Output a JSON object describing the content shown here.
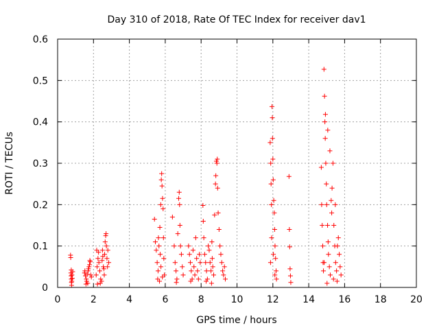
{
  "chart_data": {
    "type": "scatter",
    "title": "Day 310 of 2018, Rate Of TEC Index for receiver dav1",
    "xlabel": "GPS time / hours",
    "ylabel": "ROTI / TECUs",
    "xlim": [
      0,
      20
    ],
    "ylim": [
      0,
      0.6
    ],
    "x_ticks": [
      0,
      2,
      4,
      6,
      8,
      10,
      12,
      14,
      16,
      18,
      20
    ],
    "x_tick_labels": [
      "0",
      "2",
      "4",
      "6",
      "8",
      "10",
      "12",
      "14",
      "16",
      "18",
      "20"
    ],
    "y_ticks": [
      0,
      0.1,
      0.2,
      0.3,
      0.4,
      0.5,
      0.6
    ],
    "y_tick_labels": [
      "0",
      "0.1",
      "0.2",
      "0.3",
      "0.4",
      "0.5",
      "0.6"
    ],
    "grid": true,
    "marker": "+",
    "series": [
      {
        "name": "ROTI",
        "color": "#ff0000",
        "points": [
          [
            0.72,
            0.078
          ],
          [
            0.73,
            0.072
          ],
          [
            0.74,
            0.035
          ],
          [
            0.75,
            0.028
          ],
          [
            0.76,
            0.02
          ],
          [
            0.77,
            0.012
          ],
          [
            0.78,
            0.005
          ],
          [
            0.8,
            0.03
          ],
          [
            0.82,
            0.022
          ],
          [
            0.84,
            0.038
          ],
          [
            0.76,
            0.042
          ],
          [
            0.79,
            0.015
          ],
          [
            1.5,
            0.035
          ],
          [
            1.55,
            0.028
          ],
          [
            1.6,
            0.02
          ],
          [
            1.62,
            0.015
          ],
          [
            1.65,
            0.032
          ],
          [
            1.7,
            0.04
          ],
          [
            1.72,
            0.045
          ],
          [
            1.75,
            0.05
          ],
          [
            1.78,
            0.055
          ],
          [
            1.8,
            0.065
          ],
          [
            1.82,
            0.062
          ],
          [
            1.68,
            0.01
          ],
          [
            1.58,
            0.008
          ],
          [
            1.85,
            0.03
          ],
          [
            1.88,
            0.025
          ],
          [
            1.52,
            0.04
          ],
          [
            2.15,
            0.03
          ],
          [
            2.2,
            0.05
          ],
          [
            2.25,
            0.07
          ],
          [
            2.28,
            0.085
          ],
          [
            2.3,
            0.06
          ],
          [
            2.35,
            0.04
          ],
          [
            2.4,
            0.02
          ],
          [
            2.45,
            0.015
          ],
          [
            2.5,
            0.09
          ],
          [
            2.52,
            0.075
          ],
          [
            2.55,
            0.05
          ],
          [
            2.6,
            0.03
          ],
          [
            2.62,
            0.08
          ],
          [
            2.65,
            0.11
          ],
          [
            2.68,
            0.125
          ],
          [
            2.7,
            0.13
          ],
          [
            2.72,
            0.1
          ],
          [
            2.75,
            0.07
          ],
          [
            2.78,
            0.05
          ],
          [
            2.8,
            0.09
          ],
          [
            2.22,
            0.008
          ],
          [
            2.38,
            0.01
          ],
          [
            2.48,
            0.065
          ],
          [
            2.58,
            0.045
          ],
          [
            2.85,
            0.06
          ],
          [
            2.18,
            0.09
          ],
          [
            5.4,
            0.165
          ],
          [
            5.5,
            0.09
          ],
          [
            5.55,
            0.06
          ],
          [
            5.6,
            0.04
          ],
          [
            5.62,
            0.12
          ],
          [
            5.65,
            0.1
          ],
          [
            5.7,
            0.145
          ],
          [
            5.72,
            0.08
          ],
          [
            5.75,
            0.2
          ],
          [
            5.78,
            0.26
          ],
          [
            5.8,
            0.275
          ],
          [
            5.82,
            0.245
          ],
          [
            5.85,
            0.215
          ],
          [
            5.88,
            0.19
          ],
          [
            5.9,
            0.12
          ],
          [
            5.92,
            0.07
          ],
          [
            5.95,
            0.03
          ],
          [
            5.58,
            0.02
          ],
          [
            5.68,
            0.015
          ],
          [
            5.76,
            0.05
          ],
          [
            5.84,
            0.025
          ],
          [
            5.45,
            0.11
          ],
          [
            6.4,
            0.17
          ],
          [
            6.5,
            0.1
          ],
          [
            6.55,
            0.06
          ],
          [
            6.6,
            0.04
          ],
          [
            6.65,
            0.02
          ],
          [
            6.7,
            0.13
          ],
          [
            6.75,
            0.215
          ],
          [
            6.78,
            0.23
          ],
          [
            6.8,
            0.2
          ],
          [
            6.82,
            0.15
          ],
          [
            6.85,
            0.1
          ],
          [
            6.9,
            0.08
          ],
          [
            6.95,
            0.05
          ],
          [
            7.0,
            0.03
          ],
          [
            6.62,
            0.012
          ],
          [
            7.3,
            0.1
          ],
          [
            7.35,
            0.08
          ],
          [
            7.4,
            0.06
          ],
          [
            7.45,
            0.04
          ],
          [
            7.5,
            0.02
          ],
          [
            7.55,
            0.09
          ],
          [
            7.6,
            0.05
          ],
          [
            7.65,
            0.03
          ],
          [
            7.7,
            0.12
          ],
          [
            7.75,
            0.07
          ],
          [
            7.8,
            0.04
          ],
          [
            7.85,
            0.02
          ],
          [
            7.9,
            0.08
          ],
          [
            7.95,
            0.06
          ],
          [
            7.42,
            0.015
          ],
          [
            8.1,
            0.198
          ],
          [
            8.12,
            0.16
          ],
          [
            8.15,
            0.12
          ],
          [
            8.2,
            0.08
          ],
          [
            8.25,
            0.06
          ],
          [
            8.3,
            0.04
          ],
          [
            8.35,
            0.02
          ],
          [
            8.4,
            0.1
          ],
          [
            8.45,
            0.09
          ],
          [
            8.5,
            0.06
          ],
          [
            8.55,
            0.04
          ],
          [
            8.6,
            0.11
          ],
          [
            8.62,
            0.07
          ],
          [
            8.65,
            0.05
          ],
          [
            8.7,
            0.03
          ],
          [
            8.75,
            0.175
          ],
          [
            8.8,
            0.25
          ],
          [
            8.82,
            0.27
          ],
          [
            8.85,
            0.305
          ],
          [
            8.88,
            0.3
          ],
          [
            8.9,
            0.31
          ],
          [
            8.92,
            0.24
          ],
          [
            8.95,
            0.18
          ],
          [
            9.0,
            0.14
          ],
          [
            9.05,
            0.1
          ],
          [
            9.1,
            0.08
          ],
          [
            9.15,
            0.06
          ],
          [
            9.2,
            0.04
          ],
          [
            9.25,
            0.03
          ],
          [
            9.3,
            0.05
          ],
          [
            9.35,
            0.02
          ],
          [
            8.28,
            0.015
          ],
          [
            8.58,
            0.01
          ],
          [
            11.85,
            0.35
          ],
          [
            11.88,
            0.3
          ],
          [
            11.9,
            0.25
          ],
          [
            11.92,
            0.2
          ],
          [
            11.95,
            0.437
          ],
          [
            11.97,
            0.41
          ],
          [
            11.98,
            0.36
          ],
          [
            12.0,
            0.31
          ],
          [
            12.02,
            0.26
          ],
          [
            12.05,
            0.21
          ],
          [
            12.08,
            0.18
          ],
          [
            12.1,
            0.14
          ],
          [
            12.12,
            0.1
          ],
          [
            12.15,
            0.07
          ],
          [
            12.18,
            0.04
          ],
          [
            12.2,
            0.02
          ],
          [
            11.93,
            0.12
          ],
          [
            12.03,
            0.08
          ],
          [
            12.11,
            0.03
          ],
          [
            11.87,
            0.06
          ],
          [
            12.9,
            0.268
          ],
          [
            12.92,
            0.14
          ],
          [
            12.94,
            0.098
          ],
          [
            12.96,
            0.045
          ],
          [
            12.98,
            0.028
          ],
          [
            13.0,
            0.012
          ],
          [
            14.7,
            0.29
          ],
          [
            14.72,
            0.2
          ],
          [
            14.75,
            0.15
          ],
          [
            14.78,
            0.1
          ],
          [
            14.8,
            0.06
          ],
          [
            14.82,
            0.04
          ],
          [
            14.85,
            0.527
          ],
          [
            14.88,
            0.462
          ],
          [
            14.9,
            0.4
          ],
          [
            14.92,
            0.36
          ],
          [
            14.95,
            0.3
          ],
          [
            14.98,
            0.25
          ],
          [
            15.0,
            0.2
          ],
          [
            15.05,
            0.15
          ],
          [
            15.08,
            0.11
          ],
          [
            15.1,
            0.08
          ],
          [
            15.15,
            0.05
          ],
          [
            15.2,
            0.03
          ],
          [
            15.25,
            0.21
          ],
          [
            15.3,
            0.24
          ],
          [
            15.35,
            0.3
          ],
          [
            15.4,
            0.15
          ],
          [
            15.45,
            0.1
          ],
          [
            15.5,
            0.06
          ],
          [
            15.55,
            0.04
          ],
          [
            15.6,
            0.1
          ],
          [
            15.65,
            0.12
          ],
          [
            15.7,
            0.08
          ],
          [
            15.75,
            0.05
          ],
          [
            15.8,
            0.03
          ],
          [
            14.86,
            0.06
          ],
          [
            15.02,
            0.01
          ],
          [
            14.93,
            0.418
          ],
          [
            15.06,
            0.38
          ],
          [
            15.18,
            0.33
          ],
          [
            15.28,
            0.18
          ],
          [
            15.38,
            0.02
          ],
          [
            15.48,
            0.2
          ],
          [
            15.58,
            0.015
          ]
        ]
      }
    ]
  }
}
